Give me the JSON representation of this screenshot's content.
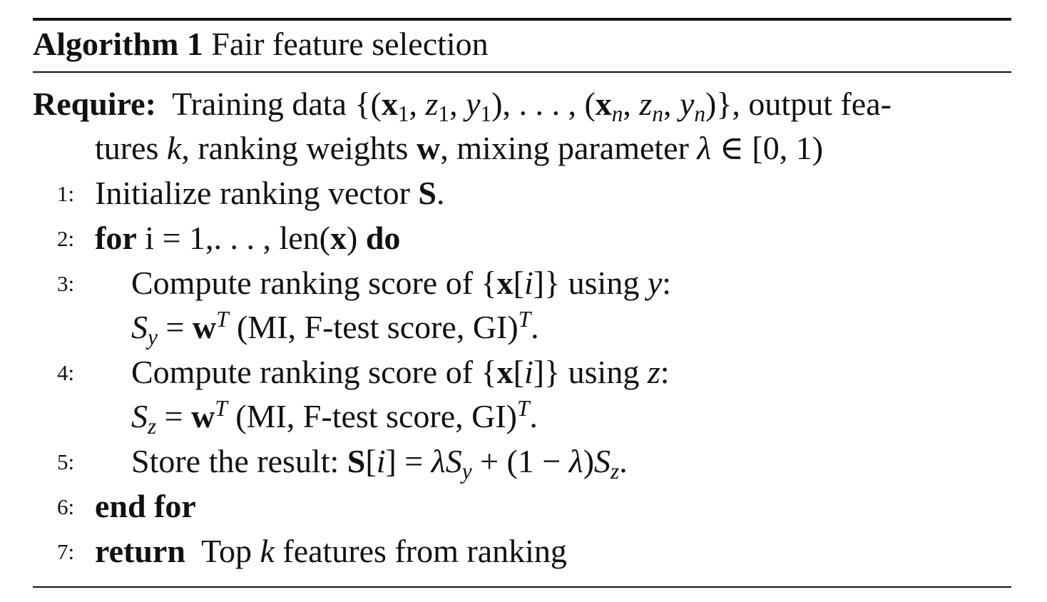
{
  "algorithm": {
    "label": "Algorithm 1",
    "title": "Fair feature selection"
  },
  "require": {
    "keyword": "Require:",
    "line1_text": "Training data {(x1, z1, y1), . . . , (xn, zn, yn)}, output fea-",
    "line2_text": "tures k, ranking weights w, mixing parameter λ ∈ [0, 1)",
    "t_training_data": "Training data {(",
    "t_x": "x",
    "t_sub_1": "1",
    "t_z": "z",
    "t_y": "y",
    "t_n": "n",
    "t_output": ")}, output fea-",
    "t_tures": "tures ",
    "t_k": "k",
    "t_ranking_weights": ", ranking weights ",
    "t_w": "w",
    "t_mixing": ", mixing parameter ",
    "t_lambda": "λ",
    "t_interval": " ∈ [0, 1)"
  },
  "steps": [
    {
      "num": "1:",
      "text": "Initialize ranking vector S."
    },
    {
      "num": "2:",
      "kw_for": "for",
      "text": "i = 1,. . . , len(x)",
      "kw_do": "do"
    },
    {
      "num": "3:",
      "text": "Compute ranking score of {x[i]} using y:",
      "formula": "Sy = wT (MI, F-test score, GI)T."
    },
    {
      "num": "4:",
      "text": "Compute ranking score of {x[i]} using z:",
      "formula": "Sz = wT (MI, F-test score, GI)T."
    },
    {
      "num": "5:",
      "text": "Store the result: S[i] = λSy + (1 − λ)Sz."
    },
    {
      "num": "6:",
      "kw": "end for"
    },
    {
      "num": "7:",
      "kw": "return",
      "text": "Top k features from ranking"
    }
  ]
}
